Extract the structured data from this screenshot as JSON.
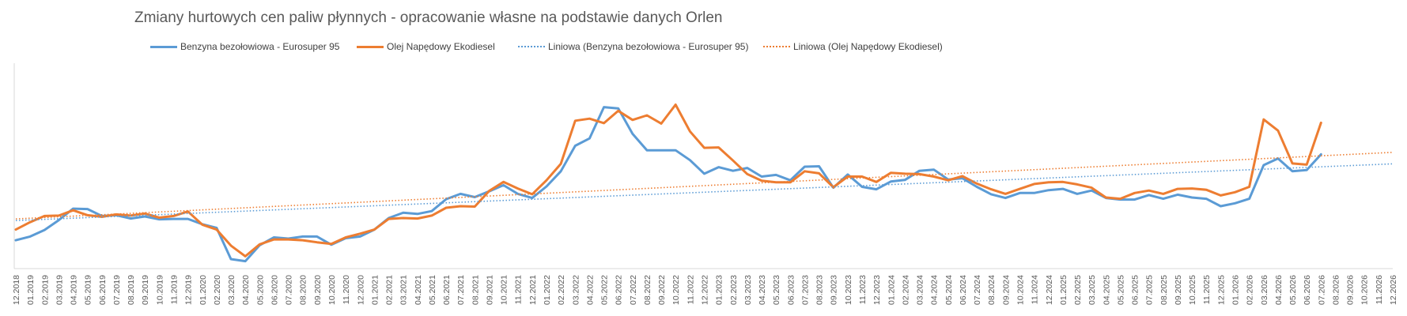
{
  "chart_data": {
    "type": "line",
    "title": "Zmiany hurtowych cen paliw płynnych - opracowanie własne na podstawie danych Orlen",
    "legend_position": "top",
    "grid": false,
    "ylim": [
      3000,
      8000
    ],
    "y_ticks_visible": false,
    "x_labels": [
      "12.2018",
      "01.2019",
      "02.2019",
      "03.2019",
      "04.2019",
      "05.2019",
      "06.2019",
      "07.2019",
      "08.2019",
      "09.2019",
      "10.2019",
      "11.2019",
      "12.2019",
      "01.2020",
      "02.2020",
      "03.2020",
      "04.2020",
      "05.2020",
      "06.2020",
      "07.2020",
      "08.2020",
      "09.2020",
      "10.2020",
      "11.2020",
      "12.2020",
      "01.2021",
      "02.2021",
      "03.2021",
      "04.2021",
      "05.2021",
      "06.2021",
      "07.2021",
      "08.2021",
      "09.2021",
      "10.2021",
      "11.2021",
      "12.2021",
      "01.2022",
      "02.2022",
      "03.2022",
      "04.2022",
      "05.2022",
      "06.2022",
      "07.2022",
      "08.2022",
      "09.2022",
      "10.2022",
      "11.2022",
      "12.2022",
      "01.2023",
      "02.2023",
      "03.2023",
      "04.2023",
      "05.2023",
      "06.2023",
      "07.2023",
      "08.2023",
      "09.2023",
      "10.2023",
      "11.2023",
      "12.2023",
      "01.2024",
      "02.2024",
      "03.2024",
      "04.2024",
      "05.2024",
      "06.2024",
      "07.2024",
      "08.2024",
      "09.2024",
      "10.2024",
      "11.2024",
      "12.2024",
      "01.2025",
      "02.2025",
      "03.2025",
      "04.2025",
      "05.2025",
      "06.2025",
      "07.2025",
      "08.2025",
      "09.2025",
      "10.2025",
      "11.2025",
      "12.2025",
      "01.2026",
      "02.2026",
      "03.2026",
      "04.2026",
      "05.2026",
      "06.2026",
      "07.2026",
      "08.2026",
      "09.2026",
      "10.2026",
      "11.2026",
      "12.2026"
    ],
    "series": [
      {
        "name": "Benzyna bezołowiowa - Eurosuper 95",
        "color": "#5B9BD5",
        "style": "solid",
        "values": [
          3690,
          3780,
          3940,
          4180,
          4460,
          4450,
          4280,
          4300,
          4220,
          4270,
          4200,
          4210,
          4210,
          4080,
          3990,
          3230,
          3180,
          3570,
          3760,
          3730,
          3780,
          3780,
          3580,
          3740,
          3780,
          3950,
          4230,
          4360,
          4330,
          4400,
          4690,
          4820,
          4740,
          4880,
          5030,
          4820,
          4720,
          5000,
          5370,
          5990,
          6170,
          6930,
          6900,
          6280,
          5880,
          5880,
          5880,
          5640,
          5310,
          5470,
          5380,
          5450,
          5240,
          5280,
          5150,
          5480,
          5490,
          4970,
          5290,
          4990,
          4930,
          5120,
          5160,
          5380,
          5410,
          5170,
          5200,
          4990,
          4810,
          4720,
          4840,
          4840,
          4910,
          4940,
          4820,
          4900,
          4720,
          4680,
          4680,
          4790,
          4700,
          4800,
          4730,
          4700,
          4520,
          4590,
          4700,
          5520,
          5680,
          5370,
          5400,
          5780
        ]
      },
      {
        "name": "Olej Napędowy Ekodiesel",
        "color": "#ED7D31",
        "style": "solid",
        "values": [
          3950,
          4130,
          4280,
          4290,
          4420,
          4300,
          4260,
          4320,
          4290,
          4340,
          4240,
          4280,
          4390,
          4070,
          3950,
          3560,
          3300,
          3590,
          3710,
          3710,
          3690,
          3640,
          3600,
          3760,
          3850,
          3950,
          4210,
          4230,
          4220,
          4290,
          4480,
          4520,
          4510,
          4890,
          5110,
          4950,
          4810,
          5150,
          5550,
          6600,
          6650,
          6540,
          6840,
          6620,
          6730,
          6530,
          6990,
          6340,
          5940,
          5950,
          5630,
          5300,
          5140,
          5100,
          5100,
          5370,
          5320,
          4980,
          5240,
          5240,
          5110,
          5330,
          5310,
          5300,
          5240,
          5150,
          5250,
          5070,
          4930,
          4820,
          4940,
          5060,
          5100,
          5110,
          5050,
          4970,
          4730,
          4700,
          4840,
          4900,
          4820,
          4940,
          4950,
          4920,
          4780,
          4860,
          4990,
          6630,
          6360,
          5560,
          5530,
          6550
        ]
      },
      {
        "name": "Liniowa (Benzyna bezołowiowa - Eurosuper 95)",
        "color": "#5B9BD5",
        "style": "dotted",
        "trend_of": "Benzyna bezołowiowa - Eurosuper 95",
        "values": [
          4170,
          5550
        ]
      },
      {
        "name": "Liniowa (Olej Napędowy Ekodiesel)",
        "color": "#ED7D31",
        "style": "dotted",
        "trend_of": "Olej Napędowy Ekodiesel",
        "values": [
          4210,
          5830
        ]
      }
    ]
  }
}
